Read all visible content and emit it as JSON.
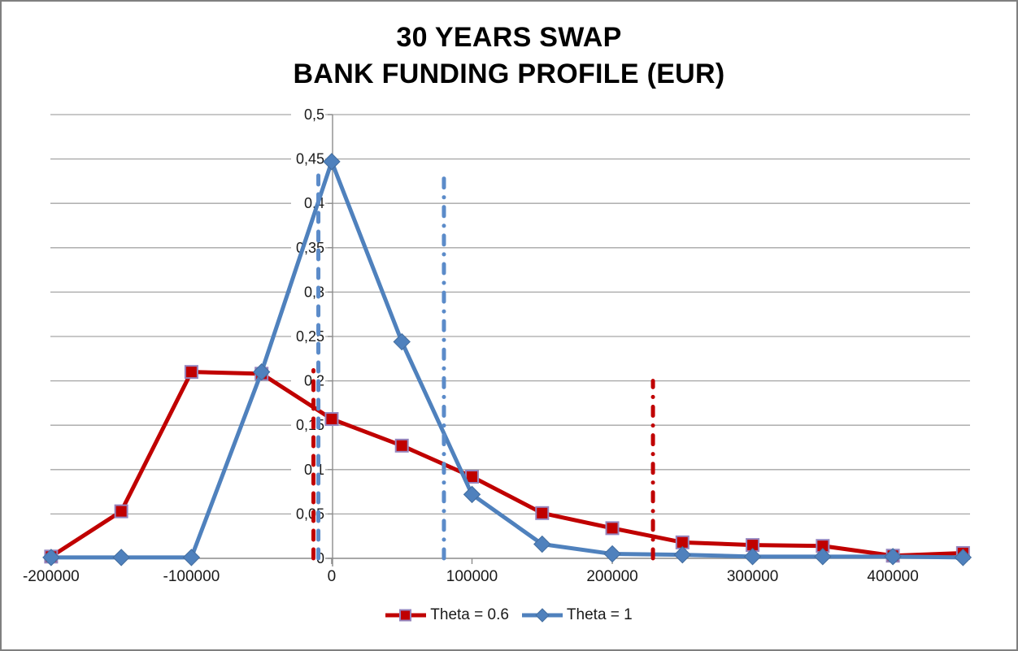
{
  "title": {
    "line1": "30 YEARS SWAP",
    "line2": "BANK FUNDING PROFILE (EUR)"
  },
  "chart_data": {
    "type": "line",
    "title_lines": [
      "30 YEARS SWAP",
      "BANK FUNDING PROFILE (EUR)"
    ],
    "decimal_separator": ",",
    "grid": "horizontal",
    "legend_position": "bottom",
    "xlim": [
      -200500,
      455000
    ],
    "ylim": [
      0,
      0.5
    ],
    "x": [
      -200000,
      -150000,
      -100000,
      -50000,
      0,
      50000,
      100000,
      150000,
      200000,
      250000,
      300000,
      350000,
      400000,
      450000
    ],
    "series": [
      {
        "name": "Theta = 0.6",
        "color": "#C00000",
        "marker": "square",
        "marker_fill": "#C00000",
        "marker_border": "#9585BE",
        "values": [
          0.002,
          0.053,
          0.21,
          0.208,
          0.157,
          0.127,
          0.092,
          0.051,
          0.034,
          0.018,
          0.015,
          0.014,
          0.003,
          0.006
        ]
      },
      {
        "name": "Theta = 1",
        "color": "#4F81BD",
        "marker": "diamond",
        "marker_fill": "#4F81BD",
        "marker_border": "#436D9E",
        "values": [
          0.001,
          0.001,
          0.001,
          0.21,
          0.447,
          0.244,
          0.072,
          0.016,
          0.005,
          0.004,
          0.002,
          0.002,
          0.002,
          0.001
        ]
      }
    ],
    "reference_lines": [
      {
        "id": "red-dashed-line",
        "style": "dashed",
        "x": -13000,
        "y_top": 0.212,
        "color": "#C00000"
      },
      {
        "id": "blue-dashed-line",
        "style": "dashed",
        "x": -9500,
        "y_top": 0.437,
        "color": "#5B8BC9"
      },
      {
        "id": "blue-dash-dot-line",
        "style": "dash-dot",
        "x": 80000,
        "y_top": 0.437,
        "color": "#5B8BC9"
      },
      {
        "id": "red-dash-dot-line",
        "style": "dash-dot",
        "x": 229000,
        "y_top": 0.2,
        "color": "#C00000"
      }
    ],
    "x_ticks": [
      {
        "value": -200000,
        "label": "-200000"
      },
      {
        "value": -100000,
        "label": "-100000"
      },
      {
        "value": 0,
        "label": "0"
      },
      {
        "value": 100000,
        "label": "100000"
      },
      {
        "value": 200000,
        "label": "200000"
      },
      {
        "value": 300000,
        "label": "300000"
      },
      {
        "value": 400000,
        "label": "400000"
      }
    ],
    "y_ticks": [
      {
        "value": 0,
        "label": "0"
      },
      {
        "value": 0.05,
        "label": "0,05"
      },
      {
        "value": 0.1,
        "label": "0,1"
      },
      {
        "value": 0.15,
        "label": "0,15"
      },
      {
        "value": 0.2,
        "label": "0,2"
      },
      {
        "value": 0.25,
        "label": "0,25"
      },
      {
        "value": 0.3,
        "label": "0,3"
      },
      {
        "value": 0.35,
        "label": "0,35"
      },
      {
        "value": 0.4,
        "label": "0,4"
      },
      {
        "value": 0.45,
        "label": "0,45"
      },
      {
        "value": 0.5,
        "label": "0,5"
      }
    ]
  },
  "legend": {
    "items": [
      {
        "label": "Theta = 0.6"
      },
      {
        "label": "Theta = 1"
      }
    ]
  }
}
